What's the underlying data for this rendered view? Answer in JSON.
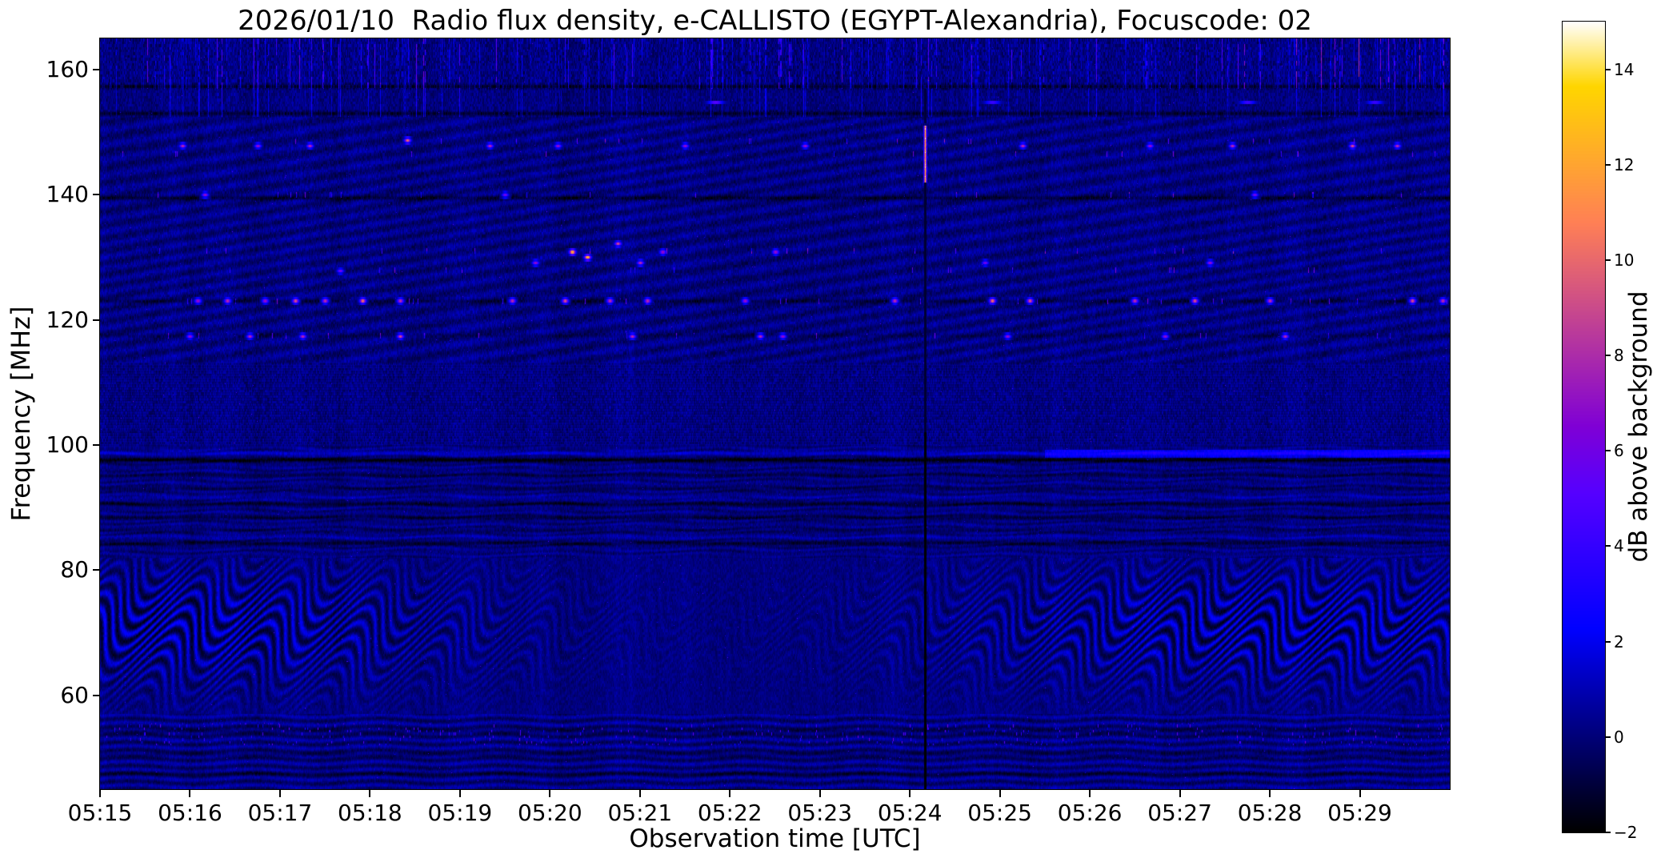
{
  "chart_data": {
    "type": "heatmap",
    "title": "2026/01/10  Radio flux density, e-CALLISTO (EGYPT-Alexandria), Focuscode: 02",
    "xlabel": "Observation time [UTC]",
    "ylabel": "Frequency [MHz]",
    "x_range": {
      "start": "05:15:00",
      "end": "05:30:00",
      "seconds": 900
    },
    "y_range_mhz": [
      45,
      165
    ],
    "x_ticks": [
      "05:15",
      "05:16",
      "05:17",
      "05:18",
      "05:19",
      "05:20",
      "05:21",
      "05:22",
      "05:23",
      "05:24",
      "05:25",
      "05:26",
      "05:27",
      "05:28",
      "05:29"
    ],
    "y_ticks": [
      160,
      140,
      120,
      100,
      80,
      60
    ],
    "colorbar": {
      "label": "dB above background",
      "vmin": -2,
      "vmax": 15,
      "ticks": [
        14,
        12,
        10,
        8,
        6,
        4,
        2,
        0,
        -2
      ],
      "colormap": "gnuplot2"
    },
    "bursts": [
      [
        "05:16:05",
        123,
        7
      ],
      [
        "05:16:25",
        123,
        8
      ],
      [
        "05:16:50",
        123,
        7
      ],
      [
        "05:17:10",
        123,
        9
      ],
      [
        "05:17:30",
        123,
        8
      ],
      [
        "05:17:55",
        123,
        10
      ],
      [
        "05:18:20",
        123,
        8
      ],
      [
        "05:19:35",
        123,
        8
      ],
      [
        "05:20:10",
        123,
        9
      ],
      [
        "05:20:40",
        123,
        8
      ],
      [
        "05:21:05",
        123,
        8
      ],
      [
        "05:22:10",
        123,
        7
      ],
      [
        "05:23:50",
        123,
        8
      ],
      [
        "05:24:55",
        123,
        10
      ],
      [
        "05:25:20",
        123,
        9
      ],
      [
        "05:26:30",
        123,
        8
      ],
      [
        "05:27:10",
        123,
        9
      ],
      [
        "05:28:00",
        123,
        8
      ],
      [
        "05:29:35",
        123,
        9
      ],
      [
        "05:29:55",
        123,
        8
      ],
      [
        "05:16:00",
        117.5,
        7
      ],
      [
        "05:16:40",
        117.5,
        8
      ],
      [
        "05:17:15",
        117.5,
        8
      ],
      [
        "05:18:20",
        117.5,
        9
      ],
      [
        "05:20:55",
        117.5,
        8
      ],
      [
        "05:22:20",
        117.5,
        8
      ],
      [
        "05:22:35",
        117.5,
        7
      ],
      [
        "05:25:05",
        117.5,
        7
      ],
      [
        "05:26:50",
        117.5,
        7
      ],
      [
        "05:28:10",
        117.5,
        8
      ],
      [
        "05:17:40",
        128,
        6
      ],
      [
        "05:19:50",
        129,
        7
      ],
      [
        "05:20:15",
        131,
        12
      ],
      [
        "05:20:25",
        130,
        13
      ],
      [
        "05:20:45",
        132,
        9
      ],
      [
        "05:21:00",
        129,
        8
      ],
      [
        "05:21:15",
        131,
        7
      ],
      [
        "05:22:30",
        131,
        7
      ],
      [
        "05:24:50",
        129,
        6
      ],
      [
        "05:27:20",
        129,
        7
      ],
      [
        "05:16:10",
        140,
        7
      ],
      [
        "05:19:30",
        140,
        6
      ],
      [
        "05:27:50",
        140,
        6
      ],
      [
        "05:15:55",
        148,
        8
      ],
      [
        "05:16:45",
        148,
        7
      ],
      [
        "05:17:20",
        148,
        8
      ],
      [
        "05:18:25",
        148.5,
        10
      ],
      [
        "05:19:20",
        148,
        8
      ],
      [
        "05:20:05",
        148,
        7
      ],
      [
        "05:21:30",
        148,
        7
      ],
      [
        "05:22:50",
        148,
        7
      ],
      [
        "05:25:15",
        148,
        8
      ],
      [
        "05:26:40",
        148,
        7
      ],
      [
        "05:27:35",
        148,
        8
      ],
      [
        "05:28:55",
        148,
        9
      ],
      [
        "05:29:25",
        148,
        8
      ],
      [
        "05:21:50",
        154.8,
        5,
        "wide"
      ],
      [
        "05:24:55",
        154.8,
        4,
        "wide"
      ],
      [
        "05:27:45",
        154.8,
        4,
        "wide"
      ],
      [
        "05:29:10",
        154.8,
        4,
        "wide"
      ]
    ],
    "features": {
      "colormap": "gnuplot2",
      "background_db_range": [
        -0.5,
        1.0
      ],
      "rfi_band_mhz": [
        157,
        165
      ],
      "chevron_band_mhz": [
        57,
        82
      ],
      "chevron_period_s": 60,
      "stripe_band_mhz": [
        82,
        100
      ],
      "texture_band_mhz": [
        100,
        113
      ],
      "speckle_band_mhz": [
        52,
        55.5
      ],
      "burst_line_freqs_mhz": [
        117.5,
        123,
        128,
        131,
        140,
        146.5,
        148.5
      ],
      "dark_horizontal_lines": [
        [
          47.5,
          0.8
        ],
        [
          50.5,
          0.8
        ],
        [
          54.2,
          0.9
        ],
        [
          84.3,
          1.2
        ],
        [
          86.3,
          0.6
        ],
        [
          88.4,
          1.0
        ],
        [
          90.6,
          1.2
        ],
        [
          93.0,
          0.7
        ],
        [
          95.2,
          0.8
        ],
        [
          97.6,
          2.0
        ],
        [
          117.5,
          0.5
        ],
        [
          123.0,
          0.9
        ],
        [
          139.5,
          1.2
        ],
        [
          153.0,
          1.2
        ],
        [
          157.3,
          1.2
        ]
      ],
      "bright_horizontal_lines": [
        [
          85.3,
          0.5
        ],
        [
          91.6,
          0.5
        ],
        [
          98.7,
          1.1
        ]
      ],
      "bright_patch": {
        "start_time": "05:25:30",
        "end_time": "05:30:00",
        "freq_mhz": [
          97.9,
          99.3
        ],
        "db": 2
      },
      "instrument_gap": {
        "time": "05:24:10",
        "freq_mhz": [
          45,
          102
        ]
      },
      "calibration_streak": {
        "time": "05:24:10",
        "freq_mhz": [
          142,
          151
        ],
        "db": 13
      }
    }
  }
}
